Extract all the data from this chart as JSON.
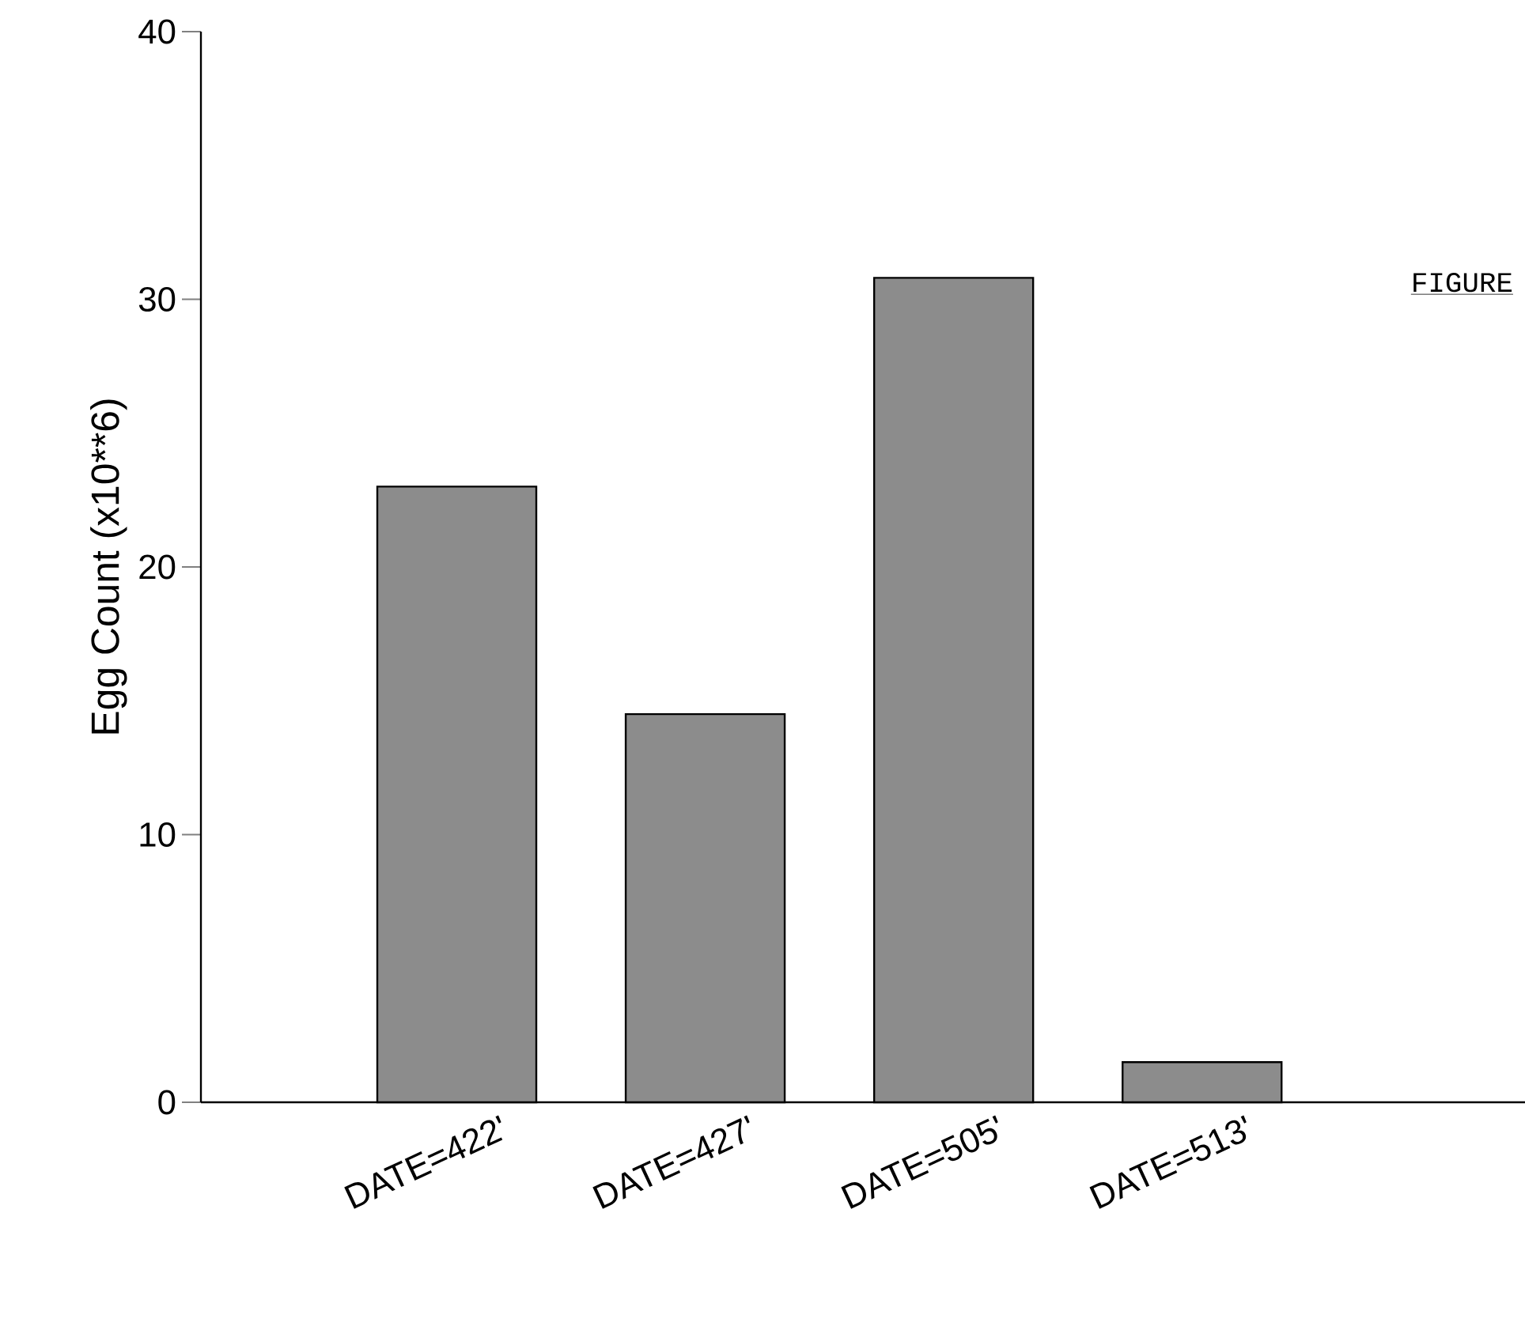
{
  "chart_data": {
    "type": "bar",
    "ylabel": "Egg Count (x10**6)",
    "categories": [
      "DATE=422'",
      "DATE=427'",
      "DATE=505'",
      "DATE=513'"
    ],
    "values": [
      23,
      14.5,
      30.8,
      1.5
    ],
    "color": "#8c8c8c",
    "ylim": [
      0,
      40
    ],
    "yticks": [
      0,
      10,
      20,
      30,
      40
    ],
    "annotations": [
      "FIGURE"
    ]
  }
}
